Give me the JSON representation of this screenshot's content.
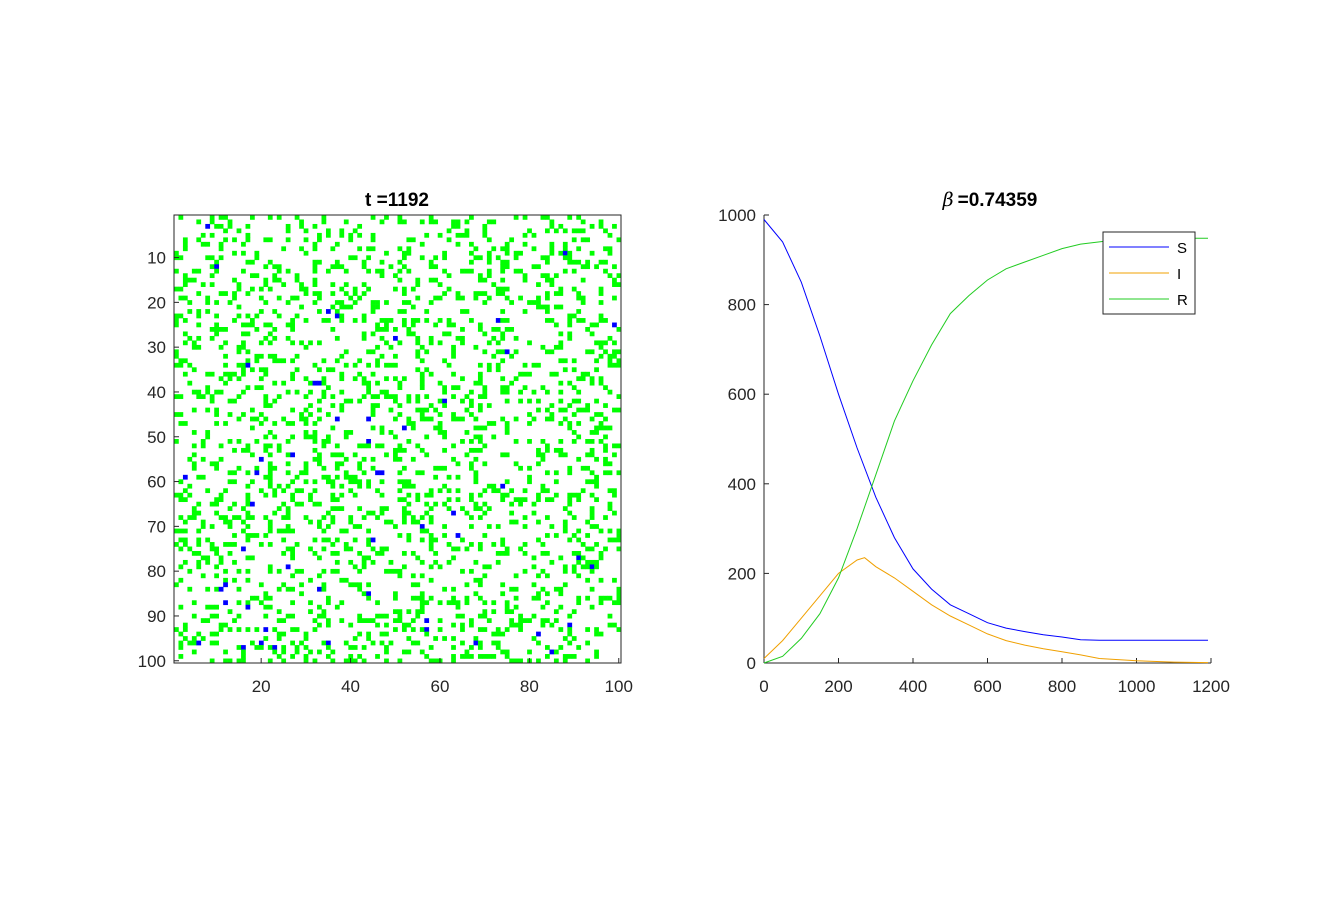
{
  "chart_data": [
    {
      "type": "heatmap",
      "title": "t =1192",
      "grid_size": [
        100,
        100
      ],
      "xlim": [
        0.5,
        100.5
      ],
      "ylim": [
        0.5,
        100.5
      ],
      "x_ticks": [
        20,
        40,
        60,
        80,
        100
      ],
      "y_ticks": [
        10,
        20,
        30,
        40,
        50,
        60,
        70,
        80,
        90,
        100
      ],
      "colors": {
        "susceptible": "#0000ff",
        "recovered": "#00ff00",
        "empty": "#ffffff"
      },
      "susceptible_cells": [
        [
          8,
          3
        ],
        [
          10,
          12
        ],
        [
          88,
          9
        ],
        [
          35,
          22
        ],
        [
          37,
          23
        ],
        [
          73,
          24
        ],
        [
          99,
          25
        ],
        [
          50,
          28
        ],
        [
          75,
          31
        ],
        [
          17,
          34
        ],
        [
          32,
          38
        ],
        [
          33,
          38
        ],
        [
          61,
          42
        ],
        [
          37,
          46
        ],
        [
          44,
          46
        ],
        [
          52,
          48
        ],
        [
          44,
          51
        ],
        [
          20,
          55
        ],
        [
          27,
          54
        ],
        [
          19,
          58
        ],
        [
          3,
          59
        ],
        [
          47,
          58
        ],
        [
          46,
          58
        ],
        [
          74,
          61
        ],
        [
          18,
          65
        ],
        [
          63,
          67
        ],
        [
          56,
          70
        ],
        [
          45,
          73
        ],
        [
          64,
          72
        ],
        [
          16,
          75
        ],
        [
          91,
          77
        ],
        [
          26,
          79
        ],
        [
          94,
          79
        ],
        [
          12,
          83
        ],
        [
          11,
          84
        ],
        [
          33,
          84
        ],
        [
          17,
          88
        ],
        [
          12,
          87
        ],
        [
          44,
          85
        ],
        [
          57,
          91
        ],
        [
          21,
          93
        ],
        [
          57,
          93
        ],
        [
          82,
          94
        ],
        [
          16,
          97
        ],
        [
          20,
          96
        ],
        [
          23,
          97
        ],
        [
          35,
          96
        ],
        [
          68,
          96
        ],
        [
          89,
          92
        ],
        [
          85,
          98
        ],
        [
          6,
          96
        ]
      ],
      "recovered_density": 0.2
    },
    {
      "type": "line",
      "title": "=0.74359",
      "title_symbol": "β",
      "xlim": [
        0,
        1200
      ],
      "ylim": [
        0,
        1000
      ],
      "x_ticks": [
        0,
        200,
        400,
        600,
        800,
        1000,
        1200
      ],
      "y_ticks": [
        0,
        200,
        400,
        600,
        800,
        1000
      ],
      "legend": {
        "position": "top-right",
        "entries": [
          "S",
          "I",
          "R"
        ]
      },
      "series": [
        {
          "name": "S",
          "color": "#0000ff",
          "x": [
            0,
            50,
            100,
            150,
            200,
            250,
            300,
            350,
            400,
            450,
            500,
            550,
            600,
            650,
            700,
            750,
            800,
            850,
            900,
            1000,
            1100,
            1192
          ],
          "y": [
            990,
            940,
            850,
            730,
            600,
            480,
            370,
            280,
            210,
            165,
            130,
            110,
            90,
            78,
            70,
            63,
            58,
            52,
            51,
            51,
            51,
            51
          ]
        },
        {
          "name": "I",
          "color": "#f0a000",
          "x": [
            0,
            50,
            100,
            150,
            200,
            250,
            270,
            300,
            350,
            400,
            450,
            500,
            550,
            600,
            650,
            700,
            750,
            800,
            850,
            900,
            1000,
            1100,
            1192
          ],
          "y": [
            10,
            50,
            100,
            150,
            200,
            230,
            235,
            215,
            190,
            160,
            130,
            105,
            85,
            65,
            50,
            40,
            32,
            25,
            18,
            10,
            5,
            2,
            1
          ]
        },
        {
          "name": "R",
          "color": "#22cc22",
          "x": [
            0,
            50,
            100,
            150,
            200,
            250,
            300,
            350,
            400,
            450,
            500,
            550,
            600,
            650,
            700,
            750,
            800,
            850,
            900,
            950,
            1000,
            1100,
            1192
          ],
          "y": [
            0,
            15,
            55,
            110,
            190,
            300,
            420,
            540,
            630,
            710,
            780,
            820,
            855,
            880,
            895,
            910,
            925,
            935,
            940,
            945,
            948,
            948,
            948
          ]
        }
      ]
    }
  ]
}
